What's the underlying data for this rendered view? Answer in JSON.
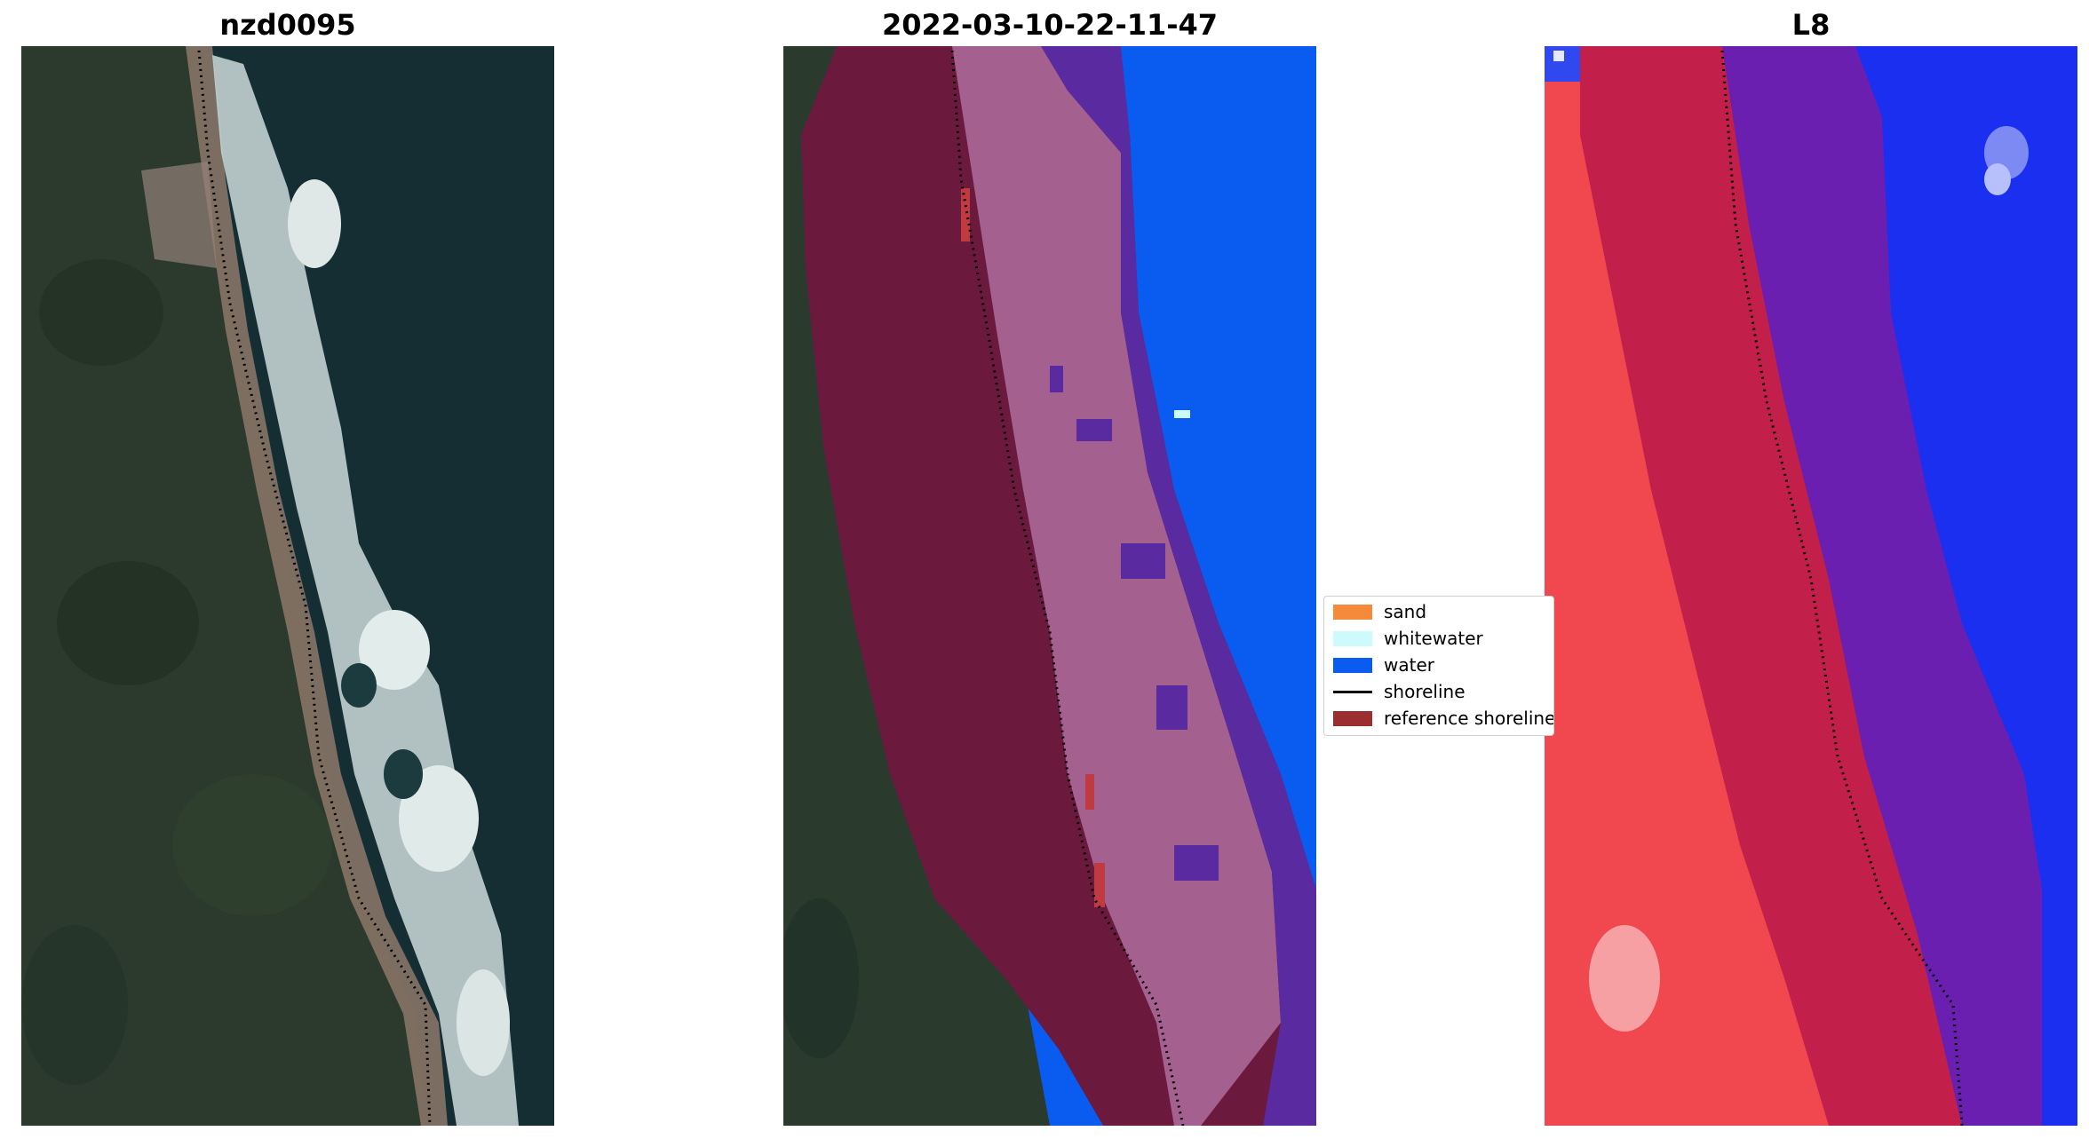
{
  "panels": [
    {
      "title": "nzd0095"
    },
    {
      "title": "2022-03-10-22-11-47"
    },
    {
      "title": "L8"
    }
  ],
  "legend": {
    "items": [
      {
        "label": "sand",
        "color": "#f58b3a"
      },
      {
        "label": "whitewater",
        "color": "#cdfbfb"
      },
      {
        "label": "water",
        "color": "#0a5cf0"
      },
      {
        "label": "shoreline",
        "color": "#000000"
      },
      {
        "label": "reference shoreline",
        "color": "#9b2e2e"
      }
    ]
  },
  "colors": {
    "land": "#2a3a2c",
    "sea": "#123238",
    "surf": "#c9d6d4",
    "beach": "#8e7a6c",
    "buffer": "#6b1a3e",
    "sand_overlay": "#a4608e",
    "water_overlay": "#5a2aa0",
    "water_class": "#0a5cf0",
    "nir_land": "#f0484e",
    "nir_buffer": "#c21f4a",
    "nir_water": "#6a1fb0",
    "nir_sea": "#1a2ff0"
  }
}
